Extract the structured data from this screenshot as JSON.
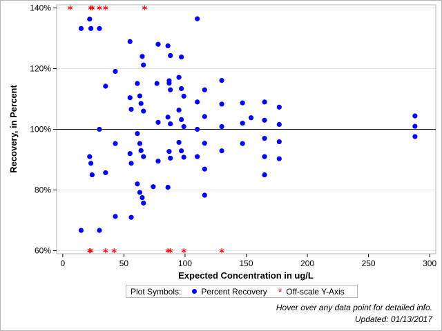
{
  "chart_data": {
    "type": "scatter",
    "xlabel": "Expected Concentration in ug/L",
    "ylabel": "Recovery, in Percent",
    "xlim": [
      -5,
      305
    ],
    "ylim": [
      59,
      141
    ],
    "xticks": [
      0,
      50,
      100,
      150,
      200,
      250,
      300
    ],
    "yticks": [
      60,
      80,
      100,
      120,
      140
    ],
    "ytick_labels": [
      "60%",
      "80%",
      "100%",
      "120%",
      "140%"
    ],
    "reference_line_y": 100,
    "grid": true,
    "series": [
      {
        "name": "Percent Recovery",
        "marker": "circle",
        "color": "#0000ff",
        "points": [
          [
            15,
            133.2
          ],
          [
            22,
            136.3
          ],
          [
            23,
            133.2
          ],
          [
            30,
            133.2
          ],
          [
            22,
            91
          ],
          [
            23,
            88.8
          ],
          [
            24,
            85
          ],
          [
            15,
            66.7
          ],
          [
            30,
            66.7
          ],
          [
            30,
            100
          ],
          [
            35,
            114.2
          ],
          [
            35,
            85.7
          ],
          [
            43,
            119.1
          ],
          [
            43,
            95.3
          ],
          [
            43,
            71.3
          ],
          [
            55,
            128.9
          ],
          [
            55,
            110.4
          ],
          [
            56,
            106.6
          ],
          [
            55,
            92
          ],
          [
            56,
            88.8
          ],
          [
            56,
            71
          ],
          [
            61,
            115.1
          ],
          [
            61,
            98.6
          ],
          [
            61,
            82
          ],
          [
            63,
            111
          ],
          [
            63,
            95.3
          ],
          [
            63,
            79.2
          ],
          [
            64,
            108.5
          ],
          [
            64,
            93
          ],
          [
            65,
            77.5
          ],
          [
            65,
            124
          ],
          [
            66,
            121.2
          ],
          [
            66,
            106
          ],
          [
            66,
            91
          ],
          [
            66,
            75.7
          ],
          [
            74,
            81.1
          ],
          [
            78,
            128
          ],
          [
            77,
            115.1
          ],
          [
            78,
            102.3
          ],
          [
            78,
            89.5
          ],
          [
            86,
            127.5
          ],
          [
            87,
            116
          ],
          [
            87,
            115.2
          ],
          [
            86,
            104
          ],
          [
            87,
            92.7
          ],
          [
            86,
            80.9
          ],
          [
            88,
            124.3
          ],
          [
            88,
            113
          ],
          [
            88,
            101.8
          ],
          [
            88,
            90.5
          ],
          [
            95,
            117.1
          ],
          [
            95,
            106.3
          ],
          [
            95,
            95.7
          ],
          [
            97,
            123.8
          ],
          [
            97,
            113.4
          ],
          [
            97,
            103.2
          ],
          [
            97,
            92.9
          ],
          [
            99,
            110.9
          ],
          [
            99,
            100.9
          ],
          [
            99,
            90.8
          ],
          [
            110,
            136.4
          ],
          [
            110,
            109
          ],
          [
            110,
            100
          ],
          [
            110,
            91
          ],
          [
            116,
            113
          ],
          [
            116,
            104.2
          ],
          [
            116,
            95.4
          ],
          [
            116,
            86.9
          ],
          [
            116,
            78.3
          ],
          [
            130,
            116.1
          ],
          [
            130,
            108.3
          ],
          [
            130,
            100.9
          ],
          [
            130,
            92.9
          ],
          [
            147,
            108.7
          ],
          [
            147,
            102
          ],
          [
            147,
            95.3
          ],
          [
            154,
            103.8
          ],
          [
            165,
            109
          ],
          [
            165,
            103
          ],
          [
            165,
            97
          ],
          [
            165,
            91
          ],
          [
            165,
            85
          ],
          [
            177,
            107.3
          ],
          [
            177,
            101.6
          ],
          [
            177,
            95.9
          ],
          [
            177,
            90.3
          ],
          [
            288,
            104.4
          ],
          [
            288,
            101
          ],
          [
            288,
            97.6
          ]
        ]
      },
      {
        "name": "Off-scale Y-Axis",
        "marker": "asterisk",
        "color": "#ff0000",
        "points": [
          [
            6,
            140
          ],
          [
            23,
            140
          ],
          [
            24,
            140
          ],
          [
            30,
            140
          ],
          [
            35,
            140
          ],
          [
            67,
            140
          ],
          [
            22,
            60
          ],
          [
            23,
            60
          ],
          [
            35,
            60
          ],
          [
            42,
            60
          ],
          [
            86,
            60
          ],
          [
            88,
            60
          ],
          [
            99,
            60
          ],
          [
            130,
            60
          ]
        ]
      }
    ]
  },
  "legend": {
    "title": "Plot Symbols:",
    "items": [
      "Percent Recovery",
      "Off-scale Y-Axis"
    ]
  },
  "footnotes": {
    "hover": "Hover over any data point for detailed info.",
    "updated": "Updated: 01/13/2017"
  }
}
